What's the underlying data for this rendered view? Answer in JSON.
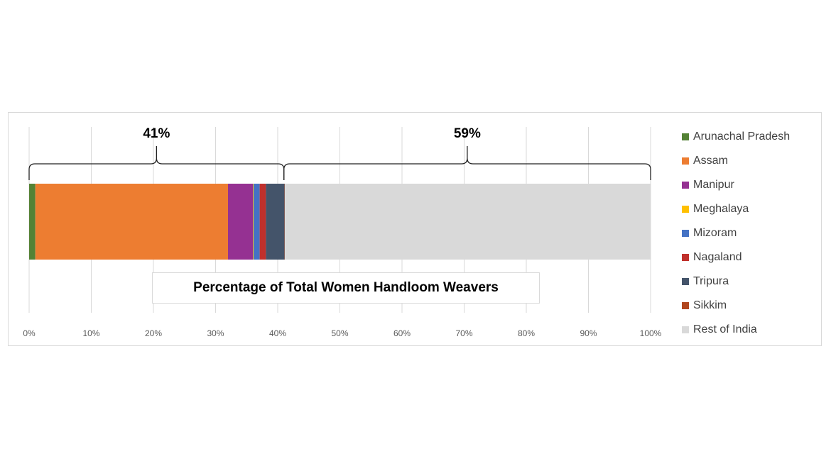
{
  "chart_data": {
    "type": "bar",
    "orientation": "horizontal",
    "stacked": true,
    "title": "Percentage of Total Women Handloom Weavers",
    "xlim": [
      0,
      100
    ],
    "x_ticks": [
      "0%",
      "10%",
      "20%",
      "30%",
      "40%",
      "50%",
      "60%",
      "70%",
      "80%",
      "90%",
      "100%"
    ],
    "grid": true,
    "legend_position": "right",
    "series": [
      {
        "name": "Arunachal Pradesh",
        "value": 1.0,
        "color": "#548235"
      },
      {
        "name": "Assam",
        "value": 31.0,
        "color": "#ed7d31"
      },
      {
        "name": "Manipur",
        "value": 4.0,
        "color": "#953192"
      },
      {
        "name": "Meghalaya",
        "value": 0.1,
        "color": "#ffc000"
      },
      {
        "name": "Mizoram",
        "value": 1.0,
        "color": "#4472c4"
      },
      {
        "name": "Nagaland",
        "value": 1.0,
        "color": "#c0302c"
      },
      {
        "name": "Tripura",
        "value": 3.0,
        "color": "#44546a"
      },
      {
        "name": "Sikkim",
        "value": 0.05,
        "color": "#b0461e"
      },
      {
        "name": "Rest of India",
        "value": 58.85,
        "color": "#d9d9d9"
      }
    ],
    "brackets": [
      {
        "label": "41%",
        "from": 0,
        "to": 41
      },
      {
        "label": "59%",
        "from": 41,
        "to": 100
      }
    ]
  }
}
